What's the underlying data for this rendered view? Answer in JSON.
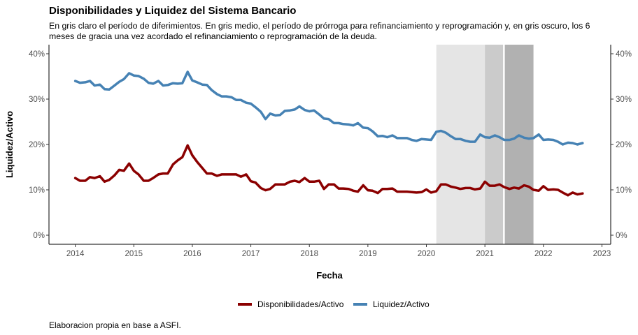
{
  "chart_data": {
    "type": "line",
    "title": "Disponibilidades y Liquidez del Sistema Bancario",
    "subtitle": "En gris claro el período de diferimientos. En gris medio, el período de prórroga para refinanciamiento y reprogramación y, en gris oscuro, los 6 meses de gracia una vez acordado el refinanciamiento o reprogramación de la deuda.",
    "caption": "Elaboracion propia en base a ASFI.",
    "xlabel": "Fecha",
    "ylabel": "Liquidez/Activo",
    "xlim": [
      2013.55,
      2023.15
    ],
    "ylim": [
      -0.02,
      0.42
    ],
    "x_ticks": [
      2014,
      2015,
      2016,
      2017,
      2018,
      2019,
      2020,
      2021,
      2022,
      2023
    ],
    "x_tick_labels": [
      "2014",
      "2015",
      "2016",
      "2017",
      "2018",
      "2019",
      "2020",
      "2021",
      "2022",
      "2023"
    ],
    "y_ticks": [
      0,
      0.1,
      0.2,
      0.3,
      0.4
    ],
    "y_tick_labels": [
      "0%",
      "10%",
      "20%",
      "30%",
      "40%"
    ],
    "grid": false,
    "secondary_y_axis": true,
    "legend_position": "bottom",
    "shaded_periods": [
      {
        "start": 2020.17,
        "end": 2021.0,
        "color": "#e5e5e5"
      },
      {
        "start": 2021.0,
        "end": 2021.31,
        "color": "#cbcbcb"
      },
      {
        "start": 2021.34,
        "end": 2021.83,
        "color": "#b1b1b1"
      }
    ],
    "series": [
      {
        "name": "Disponibilidades/Activo",
        "color": "#8b0000",
        "x": [
          2014.0,
          2014.08,
          2014.17,
          2014.25,
          2014.33,
          2014.42,
          2014.5,
          2014.58,
          2014.67,
          2014.75,
          2014.83,
          2014.92,
          2015.0,
          2015.08,
          2015.17,
          2015.25,
          2015.33,
          2015.42,
          2015.5,
          2015.58,
          2015.67,
          2015.75,
          2015.83,
          2015.92,
          2016.0,
          2016.08,
          2016.17,
          2016.25,
          2016.33,
          2016.42,
          2016.5,
          2016.58,
          2016.67,
          2016.75,
          2016.83,
          2016.92,
          2017.0,
          2017.08,
          2017.17,
          2017.25,
          2017.33,
          2017.42,
          2017.5,
          2017.58,
          2017.67,
          2017.75,
          2017.83,
          2017.92,
          2018.0,
          2018.08,
          2018.17,
          2018.25,
          2018.33,
          2018.42,
          2018.5,
          2018.58,
          2018.67,
          2018.75,
          2018.83,
          2018.92,
          2019.0,
          2019.08,
          2019.17,
          2019.25,
          2019.33,
          2019.42,
          2019.5,
          2019.58,
          2019.67,
          2019.75,
          2019.83,
          2019.92,
          2020.0,
          2020.08,
          2020.17,
          2020.25,
          2020.33,
          2020.42,
          2020.5,
          2020.58,
          2020.67,
          2020.75,
          2020.83,
          2020.92,
          2021.0,
          2021.08,
          2021.17,
          2021.25,
          2021.33,
          2021.42,
          2021.5,
          2021.58,
          2021.67,
          2021.75,
          2021.83,
          2021.92,
          2022.0,
          2022.08,
          2022.17,
          2022.25,
          2022.33,
          2022.42,
          2022.5,
          2022.58,
          2022.67
        ],
        "values": [
          0.126,
          0.12,
          0.12,
          0.128,
          0.126,
          0.13,
          0.118,
          0.122,
          0.132,
          0.144,
          0.142,
          0.158,
          0.142,
          0.134,
          0.12,
          0.12,
          0.126,
          0.134,
          0.136,
          0.136,
          0.156,
          0.165,
          0.172,
          0.198,
          0.176,
          0.162,
          0.148,
          0.136,
          0.136,
          0.131,
          0.134,
          0.134,
          0.134,
          0.134,
          0.129,
          0.134,
          0.119,
          0.116,
          0.104,
          0.099,
          0.102,
          0.112,
          0.112,
          0.112,
          0.118,
          0.12,
          0.117,
          0.126,
          0.118,
          0.118,
          0.12,
          0.102,
          0.112,
          0.112,
          0.103,
          0.103,
          0.102,
          0.098,
          0.096,
          0.11,
          0.099,
          0.098,
          0.093,
          0.102,
          0.102,
          0.103,
          0.096,
          0.096,
          0.096,
          0.095,
          0.094,
          0.095,
          0.101,
          0.094,
          0.097,
          0.112,
          0.112,
          0.107,
          0.105,
          0.102,
          0.104,
          0.104,
          0.101,
          0.103,
          0.118,
          0.109,
          0.109,
          0.112,
          0.106,
          0.102,
          0.105,
          0.103,
          0.11,
          0.107,
          0.1,
          0.098,
          0.108,
          0.1,
          0.101,
          0.1,
          0.094,
          0.088,
          0.094,
          0.09,
          0.092
        ]
      },
      {
        "name": "Liquidez/Activo",
        "color": "#4682b4",
        "x": [
          2014.0,
          2014.08,
          2014.17,
          2014.25,
          2014.33,
          2014.42,
          2014.5,
          2014.58,
          2014.67,
          2014.75,
          2014.83,
          2014.92,
          2015.0,
          2015.08,
          2015.17,
          2015.25,
          2015.33,
          2015.42,
          2015.5,
          2015.58,
          2015.67,
          2015.75,
          2015.83,
          2015.92,
          2016.0,
          2016.08,
          2016.17,
          2016.25,
          2016.33,
          2016.42,
          2016.5,
          2016.58,
          2016.67,
          2016.75,
          2016.83,
          2016.92,
          2017.0,
          2017.08,
          2017.17,
          2017.25,
          2017.33,
          2017.42,
          2017.5,
          2017.58,
          2017.67,
          2017.75,
          2017.83,
          2017.92,
          2018.0,
          2018.08,
          2018.17,
          2018.25,
          2018.33,
          2018.42,
          2018.5,
          2018.58,
          2018.67,
          2018.75,
          2018.83,
          2018.92,
          2019.0,
          2019.08,
          2019.17,
          2019.25,
          2019.33,
          2019.42,
          2019.5,
          2019.58,
          2019.67,
          2019.75,
          2019.83,
          2019.92,
          2020.0,
          2020.08,
          2020.17,
          2020.25,
          2020.33,
          2020.42,
          2020.5,
          2020.58,
          2020.67,
          2020.75,
          2020.83,
          2020.92,
          2021.0,
          2021.08,
          2021.17,
          2021.25,
          2021.33,
          2021.42,
          2021.5,
          2021.58,
          2021.67,
          2021.75,
          2021.83,
          2021.92,
          2022.0,
          2022.08,
          2022.17,
          2022.25,
          2022.33,
          2022.42,
          2022.5,
          2022.58,
          2022.67
        ],
        "values": [
          0.34,
          0.336,
          0.337,
          0.34,
          0.33,
          0.332,
          0.322,
          0.321,
          0.33,
          0.338,
          0.344,
          0.357,
          0.352,
          0.351,
          0.345,
          0.336,
          0.334,
          0.34,
          0.33,
          0.331,
          0.335,
          0.334,
          0.335,
          0.36,
          0.341,
          0.337,
          0.332,
          0.331,
          0.32,
          0.311,
          0.306,
          0.306,
          0.304,
          0.298,
          0.298,
          0.292,
          0.29,
          0.282,
          0.272,
          0.256,
          0.268,
          0.264,
          0.265,
          0.274,
          0.275,
          0.277,
          0.284,
          0.276,
          0.273,
          0.275,
          0.266,
          0.257,
          0.256,
          0.247,
          0.247,
          0.245,
          0.244,
          0.242,
          0.247,
          0.237,
          0.236,
          0.229,
          0.218,
          0.219,
          0.216,
          0.22,
          0.214,
          0.214,
          0.214,
          0.21,
          0.208,
          0.212,
          0.211,
          0.21,
          0.228,
          0.23,
          0.226,
          0.218,
          0.212,
          0.212,
          0.208,
          0.206,
          0.206,
          0.222,
          0.216,
          0.215,
          0.22,
          0.216,
          0.21,
          0.21,
          0.213,
          0.22,
          0.215,
          0.213,
          0.214,
          0.222,
          0.21,
          0.211,
          0.21,
          0.206,
          0.2,
          0.204,
          0.203,
          0.2,
          0.203
        ]
      }
    ]
  }
}
